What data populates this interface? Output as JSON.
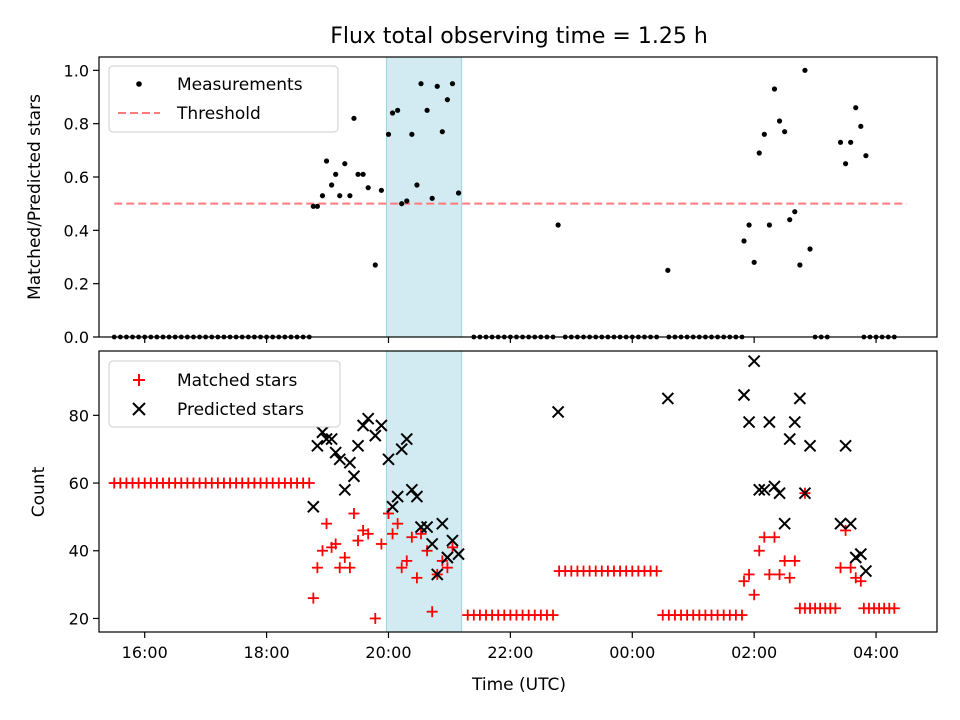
{
  "title": "Flux total observing time = 1.25 h",
  "xlabel": "Time (UTC)",
  "x_ticks": [
    "16:00",
    "18:00",
    "20:00",
    "22:00",
    "00:00",
    "02:00",
    "04:00"
  ],
  "colors": {
    "measurement": "#000000",
    "threshold": "#ff7a7a",
    "matched": "#ff0000",
    "predicted": "#000000",
    "highlight": "#add8e6"
  },
  "chart_data": [
    {
      "type": "scatter",
      "ylabel": "Matched/Predicted stars",
      "x_range": [
        "15:15",
        "05:00"
      ],
      "ylim": [
        0,
        1.05
      ],
      "y_ticks": [
        "0.0",
        "0.2",
        "0.4",
        "0.6",
        "0.8",
        "1.0"
      ],
      "highlight_span": [
        "19:58",
        "21:12"
      ],
      "threshold": {
        "value": 0.5,
        "x_range": [
          "15:30",
          "04:30"
        ]
      },
      "legend": {
        "position": "top-left",
        "measurements_label": "Measurements",
        "threshold_label": "Threshold"
      },
      "series": [
        {
          "name": "Measurements",
          "x_zero": [
            "15:30",
            "15:36",
            "15:42",
            "15:48",
            "15:54",
            "16:00",
            "16:06",
            "16:12",
            "16:18",
            "16:24",
            "16:30",
            "16:36",
            "16:42",
            "16:48",
            "16:54",
            "17:00",
            "17:06",
            "17:12",
            "17:18",
            "17:24",
            "17:30",
            "17:36",
            "17:42",
            "17:48",
            "17:54",
            "18:00",
            "18:06",
            "18:12",
            "18:18",
            "18:24",
            "18:30",
            "18:36",
            "18:42",
            "21:24",
            "21:30",
            "21:36",
            "21:42",
            "21:48",
            "21:54",
            "22:00",
            "22:06",
            "22:12",
            "22:18",
            "22:24",
            "22:30",
            "22:36",
            "22:42",
            "22:54",
            "23:00",
            "23:06",
            "23:12",
            "23:18",
            "23:24",
            "23:30",
            "23:36",
            "23:42",
            "23:48",
            "23:54",
            "00:00",
            "00:06",
            "00:12",
            "00:18",
            "00:24",
            "00:36",
            "00:42",
            "00:48",
            "00:54",
            "01:00",
            "01:06",
            "01:12",
            "01:18",
            "01:24",
            "01:30",
            "01:36",
            "01:42",
            "01:48",
            "03:00",
            "03:06",
            "03:12",
            "03:48",
            "03:54",
            "04:00",
            "04:06",
            "04:12",
            "04:18"
          ],
          "points": [
            [
              "18:46",
              0.49
            ],
            [
              "18:50",
              0.49
            ],
            [
              "18:55",
              0.53
            ],
            [
              "18:59",
              0.66
            ],
            [
              "19:04",
              0.57
            ],
            [
              "19:08",
              0.61
            ],
            [
              "19:12",
              0.53
            ],
            [
              "19:17",
              0.65
            ],
            [
              "19:22",
              0.53
            ],
            [
              "19:26",
              0.82
            ],
            [
              "19:30",
              0.61
            ],
            [
              "19:35",
              0.61
            ],
            [
              "19:40",
              0.56
            ],
            [
              "19:47",
              0.27
            ],
            [
              "19:53",
              0.55
            ],
            [
              "20:00",
              0.76
            ],
            [
              "20:04",
              0.84
            ],
            [
              "20:09",
              0.85
            ],
            [
              "20:13",
              0.5
            ],
            [
              "20:18",
              0.51
            ],
            [
              "20:23",
              0.76
            ],
            [
              "20:28",
              0.57
            ],
            [
              "20:32",
              0.95
            ],
            [
              "20:38",
              0.85
            ],
            [
              "20:43",
              0.52
            ],
            [
              "20:48",
              0.94
            ],
            [
              "20:53",
              0.77
            ],
            [
              "20:58",
              0.89
            ],
            [
              "21:03",
              0.95
            ],
            [
              "21:09",
              0.54
            ],
            [
              "22:47",
              0.42
            ],
            [
              "00:35",
              0.25
            ],
            [
              "01:50",
              0.36
            ],
            [
              "01:55",
              0.42
            ],
            [
              "02:00",
              0.28
            ],
            [
              "02:05",
              0.69
            ],
            [
              "02:10",
              0.76
            ],
            [
              "02:15",
              0.42
            ],
            [
              "02:20",
              0.93
            ],
            [
              "02:25",
              0.81
            ],
            [
              "02:30",
              0.77
            ],
            [
              "02:35",
              0.44
            ],
            [
              "02:40",
              0.47
            ],
            [
              "02:45",
              0.27
            ],
            [
              "02:50",
              1.0
            ],
            [
              "02:55",
              0.33
            ],
            [
              "03:25",
              0.73
            ],
            [
              "03:30",
              0.65
            ],
            [
              "03:35",
              0.73
            ],
            [
              "03:40",
              0.86
            ],
            [
              "03:45",
              0.79
            ],
            [
              "03:50",
              0.68
            ]
          ]
        }
      ]
    },
    {
      "type": "scatter",
      "ylabel": "Count",
      "x_range": [
        "15:15",
        "05:00"
      ],
      "ylim": [
        16,
        99
      ],
      "y_ticks": [
        "20",
        "40",
        "60",
        "80"
      ],
      "highlight_span": [
        "19:58",
        "21:12"
      ],
      "legend": {
        "position": "top-left",
        "matched_label": "Matched stars",
        "predicted_label": "Predicted stars"
      },
      "series": [
        {
          "name": "Matched stars",
          "runs": [
            {
              "from": "15:30",
              "to": "18:42",
              "step_min": 6,
              "value": 60
            },
            {
              "from": "21:18",
              "to": "22:42",
              "step_min": 6,
              "value": 21
            },
            {
              "from": "22:48",
              "to": "00:24",
              "step_min": 6,
              "value": 34
            },
            {
              "from": "00:30",
              "to": "01:48",
              "step_min": 6,
              "value": 21
            },
            {
              "from": "02:50",
              "to": "03:20",
              "step_min": 5,
              "value": 23
            },
            {
              "from": "03:48",
              "to": "04:18",
              "step_min": 5,
              "value": 23
            }
          ],
          "points": [
            [
              "18:46",
              26
            ],
            [
              "18:50",
              35
            ],
            [
              "18:55",
              40
            ],
            [
              "18:59",
              48
            ],
            [
              "19:04",
              41
            ],
            [
              "19:08",
              42
            ],
            [
              "19:12",
              35
            ],
            [
              "19:17",
              38
            ],
            [
              "19:22",
              35
            ],
            [
              "19:26",
              51
            ],
            [
              "19:30",
              43
            ],
            [
              "19:35",
              46
            ],
            [
              "19:40",
              45
            ],
            [
              "19:47",
              20
            ],
            [
              "19:53",
              42
            ],
            [
              "20:00",
              51
            ],
            [
              "20:04",
              45
            ],
            [
              "20:09",
              48
            ],
            [
              "20:13",
              35
            ],
            [
              "20:18",
              37
            ],
            [
              "20:23",
              44
            ],
            [
              "20:28",
              32
            ],
            [
              "20:32",
              45
            ],
            [
              "20:38",
              40
            ],
            [
              "20:43",
              22
            ],
            [
              "20:48",
              33
            ],
            [
              "20:53",
              37
            ],
            [
              "20:58",
              35
            ],
            [
              "21:03",
              41
            ],
            [
              "01:50",
              31
            ],
            [
              "01:55",
              33
            ],
            [
              "02:00",
              27
            ],
            [
              "02:05",
              40
            ],
            [
              "02:10",
              44
            ],
            [
              "02:15",
              33
            ],
            [
              "02:20",
              44
            ],
            [
              "02:25",
              33
            ],
            [
              "02:30",
              37
            ],
            [
              "02:35",
              32
            ],
            [
              "02:40",
              37
            ],
            [
              "02:45",
              23
            ],
            [
              "02:50",
              57
            ],
            [
              "03:25",
              35
            ],
            [
              "03:30",
              46
            ],
            [
              "03:35",
              35
            ],
            [
              "03:40",
              32
            ],
            [
              "03:45",
              31
            ]
          ]
        },
        {
          "name": "Predicted stars",
          "points": [
            [
              "18:46",
              53
            ],
            [
              "18:50",
              71
            ],
            [
              "18:55",
              75
            ],
            [
              "18:59",
              73
            ],
            [
              "19:04",
              73
            ],
            [
              "19:08",
              69
            ],
            [
              "19:12",
              67
            ],
            [
              "19:17",
              58
            ],
            [
              "19:22",
              66
            ],
            [
              "19:26",
              62
            ],
            [
              "19:30",
              71
            ],
            [
              "19:35",
              77
            ],
            [
              "19:40",
              79
            ],
            [
              "19:47",
              74
            ],
            [
              "19:53",
              77
            ],
            [
              "20:00",
              67
            ],
            [
              "20:04",
              53
            ],
            [
              "20:09",
              56
            ],
            [
              "20:13",
              70
            ],
            [
              "20:18",
              73
            ],
            [
              "20:23",
              58
            ],
            [
              "20:28",
              56
            ],
            [
              "20:32",
              47
            ],
            [
              "20:38",
              47
            ],
            [
              "20:43",
              42
            ],
            [
              "20:48",
              33
            ],
            [
              "20:53",
              48
            ],
            [
              "20:58",
              38
            ],
            [
              "21:03",
              43
            ],
            [
              "21:09",
              39
            ],
            [
              "22:47",
              81
            ],
            [
              "00:35",
              85
            ],
            [
              "01:50",
              86
            ],
            [
              "01:55",
              78
            ],
            [
              "02:00",
              96
            ],
            [
              "02:05",
              58
            ],
            [
              "02:10",
              58
            ],
            [
              "02:15",
              78
            ],
            [
              "02:20",
              59
            ],
            [
              "02:25",
              57
            ],
            [
              "02:30",
              48
            ],
            [
              "02:35",
              73
            ],
            [
              "02:40",
              78
            ],
            [
              "02:45",
              85
            ],
            [
              "02:50",
              57
            ],
            [
              "02:55",
              71
            ],
            [
              "03:25",
              48
            ],
            [
              "03:30",
              71
            ],
            [
              "03:35",
              48
            ],
            [
              "03:40",
              38
            ],
            [
              "03:45",
              39
            ],
            [
              "03:50",
              34
            ]
          ]
        }
      ]
    }
  ]
}
